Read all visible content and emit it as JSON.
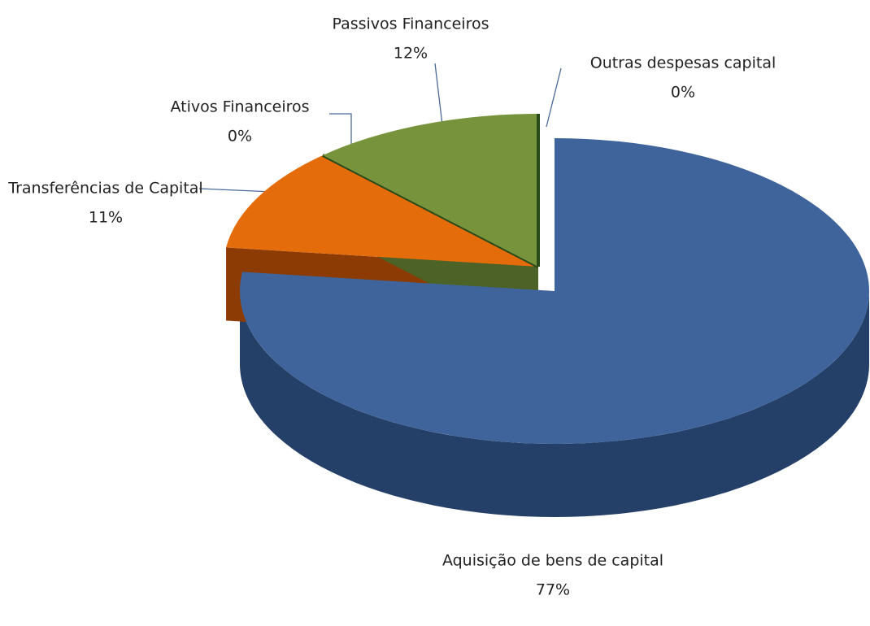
{
  "chart_data": {
    "type": "pie",
    "categories": [
      "Aquisição de bens de capital",
      "Transferências de Capital",
      "Ativos Financeiros",
      "Passivos Financeiros",
      "Outras despesas capital"
    ],
    "values": [
      77,
      11,
      0,
      12,
      0
    ],
    "value_labels": [
      "77%",
      "11%",
      "0%",
      "12%",
      "0%"
    ],
    "colors": [
      "#3f649b",
      "#e46c0a",
      "#2a4a1a",
      "#77933c",
      "#2a4a1a"
    ],
    "side_colors": [
      "#243f68",
      "#8c3b05",
      "#1a2e10",
      "#4c6226",
      "#1a2e10"
    ]
  }
}
